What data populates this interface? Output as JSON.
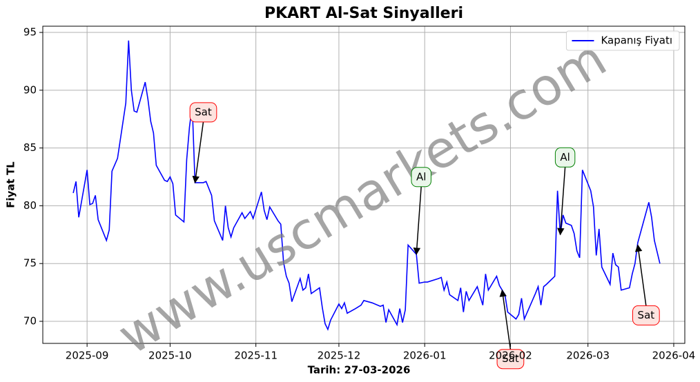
{
  "chart_data": {
    "type": "line",
    "title": "PKART Al-Sat Sinyalleri",
    "xlabel": "Tarih: 27-03-2026",
    "ylabel": "Fiyat TL",
    "watermark": "www.uscmarkets.com",
    "legend": "upper right",
    "grid": true,
    "xlim": [
      "2025-08-16",
      "2026-04-05"
    ],
    "xticks": [
      "2025-09",
      "2025-10",
      "2025-11",
      "2025-12",
      "2026-01",
      "2026-02",
      "2026-03",
      "2026-04"
    ],
    "ylim": [
      68.09,
      95.54
    ],
    "yticks": [
      70,
      75,
      80,
      85,
      90,
      95
    ],
    "x": [
      "2025-08-27",
      "2025-08-28",
      "2025-08-29",
      "2025-09-01",
      "2025-09-02",
      "2025-09-03",
      "2025-09-04",
      "2025-09-05",
      "2025-09-08",
      "2025-09-09",
      "2025-09-10",
      "2025-09-12",
      "2025-09-15",
      "2025-09-16",
      "2025-09-17",
      "2025-09-18",
      "2025-09-19",
      "2025-09-22",
      "2025-09-23",
      "2025-09-24",
      "2025-09-25",
      "2025-09-26",
      "2025-09-29",
      "2025-09-30",
      "2025-10-01",
      "2025-10-02",
      "2025-10-03",
      "2025-10-06",
      "2025-10-07",
      "2025-10-08",
      "2025-10-09",
      "2025-10-10",
      "2025-10-13",
      "2025-10-14",
      "2025-10-16",
      "2025-10-17",
      "2025-10-20",
      "2025-10-21",
      "2025-10-22",
      "2025-10-23",
      "2025-10-24",
      "2025-10-27",
      "2025-10-28",
      "2025-10-30",
      "2025-10-31",
      "2025-11-03",
      "2025-11-04",
      "2025-11-05",
      "2025-11-06",
      "2025-11-09",
      "2025-11-10",
      "2025-11-11",
      "2025-11-12",
      "2025-11-13",
      "2025-11-14",
      "2025-11-17",
      "2025-11-18",
      "2025-11-19",
      "2025-11-20",
      "2025-11-21",
      "2025-11-24",
      "2025-11-25",
      "2025-11-26",
      "2025-11-27",
      "2025-11-28",
      "2025-12-01",
      "2025-12-02",
      "2025-12-03",
      "2025-12-04",
      "2025-12-07",
      "2025-12-09",
      "2025-12-10",
      "2025-12-13",
      "2025-12-16",
      "2025-12-17",
      "2025-12-18",
      "2025-12-19",
      "2025-12-22",
      "2025-12-23",
      "2025-12-24",
      "2025-12-25",
      "2025-12-26",
      "2025-12-29",
      "2025-12-30",
      "2026-01-01",
      "2026-01-02",
      "2026-01-06",
      "2026-01-07",
      "2026-01-08",
      "2026-01-09",
      "2026-01-10",
      "2026-01-13",
      "2026-01-14",
      "2026-01-15",
      "2026-01-16",
      "2026-01-17",
      "2026-01-20",
      "2026-01-22",
      "2026-01-23",
      "2026-01-24",
      "2026-01-27",
      "2026-01-28",
      "2026-01-30",
      "2026-01-31",
      "2026-02-03",
      "2026-02-04",
      "2026-02-05",
      "2026-02-06",
      "2026-02-10",
      "2026-02-11",
      "2026-02-12",
      "2026-02-13",
      "2026-02-14",
      "2026-02-17",
      "2026-02-18",
      "2026-02-19",
      "2026-02-20",
      "2026-02-21",
      "2026-02-23",
      "2026-02-24",
      "2026-02-25",
      "2026-02-26",
      "2026-02-27",
      "2026-03-02",
      "2026-03-03",
      "2026-03-04",
      "2026-03-05",
      "2026-03-06",
      "2026-03-09",
      "2026-03-10",
      "2026-03-11",
      "2026-03-12",
      "2026-03-13",
      "2026-03-16",
      "2026-03-17",
      "2026-03-18",
      "2026-03-19",
      "2026-03-23",
      "2026-03-24",
      "2026-03-25",
      "2026-03-27"
    ],
    "series": [
      {
        "name": "Kapanış Fiyatı",
        "color": "#0000ff",
        "values": [
          81.1,
          82.1,
          79.0,
          83.1,
          80.1,
          80.2,
          80.9,
          78.8,
          77.0,
          77.9,
          83.0,
          84.1,
          88.9,
          94.3,
          90.0,
          88.2,
          88.1,
          90.7,
          89.2,
          87.3,
          86.3,
          83.5,
          82.2,
          82.1,
          82.5,
          81.9,
          79.2,
          78.6,
          84.0,
          86.8,
          88.7,
          82.0,
          82.0,
          82.1,
          80.9,
          78.7,
          77.0,
          80.0,
          78.1,
          77.3,
          78.1,
          79.4,
          78.9,
          79.5,
          78.9,
          81.2,
          79.6,
          78.8,
          79.9,
          78.7,
          78.4,
          75.1,
          73.9,
          73.3,
          71.7,
          73.7,
          72.7,
          72.9,
          74.1,
          72.4,
          72.9,
          71.2,
          69.8,
          69.3,
          70.1,
          71.5,
          71.1,
          71.6,
          70.7,
          71.1,
          71.4,
          71.8,
          71.6,
          71.3,
          71.4,
          69.9,
          71.0,
          69.7,
          71.1,
          69.9,
          71.0,
          76.6,
          75.8,
          73.3,
          73.4,
          73.4,
          73.7,
          73.8,
          72.7,
          73.4,
          72.3,
          71.8,
          72.9,
          70.8,
          72.6,
          71.8,
          73.0,
          71.4,
          74.1,
          72.7,
          73.9,
          73.1,
          72.3,
          70.8,
          70.2,
          70.6,
          72.0,
          70.2,
          72.4,
          73.0,
          71.4,
          73.0,
          73.2,
          73.9,
          81.3,
          77.5,
          79.2,
          78.5,
          78.3,
          77.6,
          76.1,
          75.5,
          83.1,
          81.3,
          79.9,
          75.7,
          78.0,
          74.7,
          73.2,
          75.9,
          74.9,
          74.7,
          72.7,
          72.9,
          74.1,
          75.0,
          76.8,
          80.3,
          79.0,
          77.0,
          75.0
        ]
      }
    ],
    "annotations": [
      {
        "text": "Sat",
        "x": "2025-10-10",
        "y": 82.0,
        "color": "#ff0000",
        "fill": "#fde3df"
      },
      {
        "text": "Al",
        "x": "2025-12-29",
        "y": 75.8,
        "color": "#008000",
        "fill": "#eaf6ea"
      },
      {
        "text": "Sat",
        "x": "2026-01-29",
        "y": 72.7,
        "color": "#ff0000",
        "fill": "#fde3df"
      },
      {
        "text": "Al",
        "x": "2026-02-19",
        "y": 77.5,
        "color": "#008000",
        "fill": "#eaf6ea"
      },
      {
        "text": "Sat",
        "x": "2026-03-19",
        "y": 76.6,
        "color": "#ff0000",
        "fill": "#fde3df"
      }
    ]
  }
}
